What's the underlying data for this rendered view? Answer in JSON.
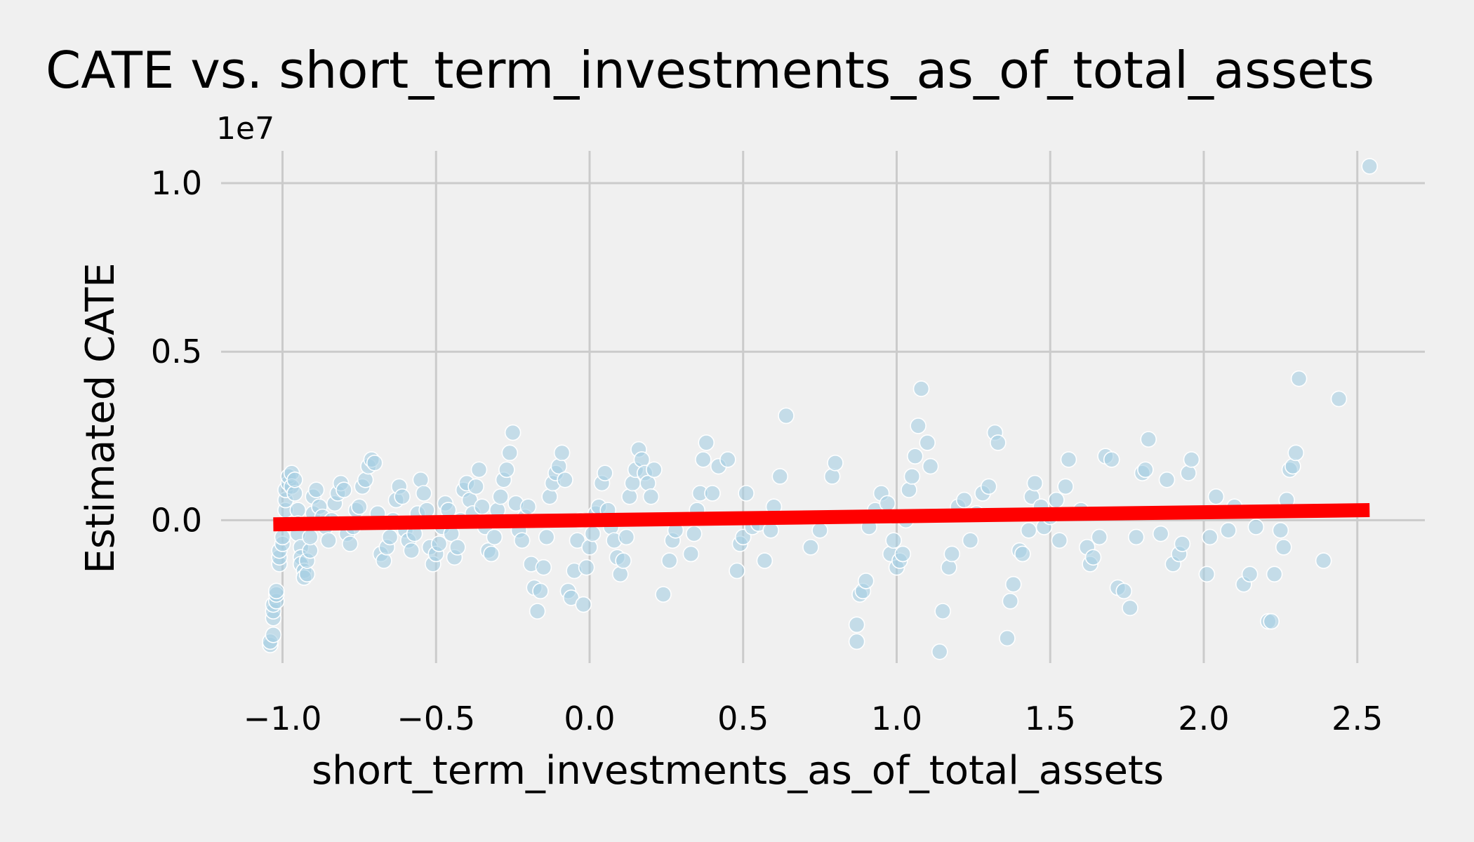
{
  "chart_data": {
    "type": "scatter",
    "title": "CATE vs. short_term_investments_as_of_total_assets",
    "xlabel": "short_term_investments_as_of_total_assets",
    "ylabel": "Estimated CATE",
    "y_offset_label": "1e7",
    "xlim": [
      -1.2,
      2.72
    ],
    "ylim": [
      -0.43,
      1.1
    ],
    "grid": true,
    "x_ticks": [
      -1.0,
      -0.5,
      0.0,
      0.5,
      1.0,
      1.5,
      2.0,
      2.5
    ],
    "x_tick_labels": [
      "−1.0",
      "−0.5",
      "0.0",
      "0.5",
      "1.0",
      "1.5",
      "2.0",
      "2.5"
    ],
    "y_ticks": [
      0.0,
      0.5,
      1.0
    ],
    "y_tick_labels": [
      "0.0",
      "0.5",
      "1.0"
    ],
    "colors": {
      "points": "#a6cee3",
      "trend": "#ff0000",
      "background": "#f0f0f0",
      "grid": "#cbcbcb"
    },
    "trend_line": {
      "x": [
        -1.03,
        2.54
      ],
      "y": [
        -0.012,
        0.03
      ]
    },
    "series": [
      {
        "points": [
          [
            -1.04,
            -0.37
          ],
          [
            -1.04,
            -0.36
          ],
          [
            -1.03,
            -0.34
          ],
          [
            -1.03,
            -0.29
          ],
          [
            -1.03,
            -0.27
          ],
          [
            -1.03,
            -0.25
          ],
          [
            -1.02,
            -0.24
          ],
          [
            -1.02,
            -0.22
          ],
          [
            -1.02,
            -0.21
          ],
          [
            -1.01,
            -0.13
          ],
          [
            -1.01,
            -0.11
          ],
          [
            -1.01,
            -0.09
          ],
          [
            -1.0,
            -0.07
          ],
          [
            -1.0,
            -0.05
          ],
          [
            -0.99,
            0.03
          ],
          [
            -0.99,
            0.06
          ],
          [
            -0.99,
            0.09
          ],
          [
            -0.98,
            0.11
          ],
          [
            -0.98,
            0.13
          ],
          [
            -0.97,
            0.14
          ],
          [
            -0.97,
            0.1
          ],
          [
            -0.96,
            0.08
          ],
          [
            -0.96,
            0.12
          ],
          [
            -0.95,
            0.03
          ],
          [
            -0.95,
            -0.01
          ],
          [
            -0.95,
            -0.04
          ],
          [
            -0.94,
            -0.08
          ],
          [
            -0.94,
            -0.11
          ],
          [
            -0.94,
            -0.13
          ],
          [
            -0.93,
            -0.15
          ],
          [
            -0.93,
            -0.17
          ],
          [
            -0.92,
            -0.16
          ],
          [
            -0.92,
            -0.12
          ],
          [
            -0.91,
            -0.09
          ],
          [
            -0.91,
            -0.05
          ],
          [
            -0.9,
            0.02
          ],
          [
            -0.9,
            0.07
          ],
          [
            -0.89,
            0.09
          ],
          [
            -0.88,
            0.04
          ],
          [
            -0.87,
            0.01
          ],
          [
            -0.86,
            -0.02
          ],
          [
            -0.85,
            -0.06
          ],
          [
            -0.84,
            0.0
          ],
          [
            -0.83,
            0.05
          ],
          [
            -0.82,
            0.08
          ],
          [
            -0.81,
            0.11
          ],
          [
            -0.8,
            0.09
          ],
          [
            -0.79,
            -0.04
          ],
          [
            -0.78,
            -0.07
          ],
          [
            -0.77,
            -0.02
          ],
          [
            -0.76,
            0.03
          ],
          [
            -0.75,
            0.04
          ],
          [
            -0.74,
            0.1
          ],
          [
            -0.73,
            0.12
          ],
          [
            -0.72,
            0.16
          ],
          [
            -0.71,
            0.18
          ],
          [
            -0.7,
            0.17
          ],
          [
            -0.69,
            0.02
          ],
          [
            -0.68,
            -0.1
          ],
          [
            -0.67,
            -0.12
          ],
          [
            -0.66,
            -0.08
          ],
          [
            -0.65,
            -0.05
          ],
          [
            -0.64,
            0.0
          ],
          [
            -0.63,
            0.06
          ],
          [
            -0.62,
            0.1
          ],
          [
            -0.61,
            0.07
          ],
          [
            -0.6,
            -0.03
          ],
          [
            -0.59,
            -0.06
          ],
          [
            -0.58,
            -0.09
          ],
          [
            -0.57,
            -0.04
          ],
          [
            -0.56,
            0.02
          ],
          [
            -0.55,
            0.12
          ],
          [
            -0.54,
            0.08
          ],
          [
            -0.53,
            0.03
          ],
          [
            -0.52,
            -0.08
          ],
          [
            -0.51,
            -0.13
          ],
          [
            -0.5,
            -0.1
          ],
          [
            -0.49,
            -0.07
          ],
          [
            -0.48,
            -0.02
          ],
          [
            -0.47,
            0.05
          ],
          [
            -0.46,
            0.03
          ],
          [
            -0.45,
            -0.04
          ],
          [
            -0.44,
            -0.11
          ],
          [
            -0.43,
            -0.08
          ],
          [
            -0.42,
            0.0
          ],
          [
            -0.41,
            0.09
          ],
          [
            -0.4,
            0.11
          ],
          [
            -0.39,
            0.06
          ],
          [
            -0.38,
            0.02
          ],
          [
            -0.37,
            0.1
          ],
          [
            -0.36,
            0.15
          ],
          [
            -0.35,
            0.04
          ],
          [
            -0.34,
            -0.02
          ],
          [
            -0.33,
            -0.09
          ],
          [
            -0.32,
            -0.1
          ],
          [
            -0.31,
            -0.05
          ],
          [
            -0.3,
            0.03
          ],
          [
            -0.29,
            0.07
          ],
          [
            -0.28,
            0.12
          ],
          [
            -0.27,
            0.15
          ],
          [
            -0.26,
            0.2
          ],
          [
            -0.25,
            0.26
          ],
          [
            -0.24,
            0.05
          ],
          [
            -0.23,
            -0.03
          ],
          [
            -0.22,
            -0.06
          ],
          [
            -0.21,
            0.01
          ],
          [
            -0.2,
            0.04
          ],
          [
            -0.19,
            -0.13
          ],
          [
            -0.18,
            -0.2
          ],
          [
            -0.17,
            -0.27
          ],
          [
            -0.16,
            -0.21
          ],
          [
            -0.15,
            -0.14
          ],
          [
            -0.14,
            -0.05
          ],
          [
            -0.13,
            0.07
          ],
          [
            -0.12,
            0.11
          ],
          [
            -0.11,
            0.14
          ],
          [
            -0.1,
            0.16
          ],
          [
            -0.09,
            0.2
          ],
          [
            -0.08,
            0.12
          ],
          [
            -0.07,
            -0.21
          ],
          [
            -0.06,
            -0.23
          ],
          [
            -0.05,
            -0.15
          ],
          [
            -0.04,
            -0.06
          ],
          [
            -0.03,
            0.0
          ],
          [
            -0.02,
            -0.25
          ],
          [
            -0.01,
            -0.14
          ],
          [
            0.0,
            -0.08
          ],
          [
            0.01,
            -0.04
          ],
          [
            0.02,
            0.02
          ],
          [
            0.03,
            0.04
          ],
          [
            0.04,
            0.11
          ],
          [
            0.05,
            0.14
          ],
          [
            0.06,
            0.03
          ],
          [
            0.07,
            -0.02
          ],
          [
            0.08,
            -0.06
          ],
          [
            0.09,
            -0.11
          ],
          [
            0.1,
            -0.16
          ],
          [
            0.11,
            -0.12
          ],
          [
            0.12,
            -0.05
          ],
          [
            0.13,
            0.07
          ],
          [
            0.14,
            0.11
          ],
          [
            0.15,
            0.15
          ],
          [
            0.16,
            0.21
          ],
          [
            0.17,
            0.18
          ],
          [
            0.18,
            0.14
          ],
          [
            0.19,
            0.11
          ],
          [
            0.2,
            0.07
          ],
          [
            0.21,
            0.15
          ],
          [
            0.24,
            -0.22
          ],
          [
            0.26,
            -0.12
          ],
          [
            0.27,
            -0.06
          ],
          [
            0.28,
            -0.03
          ],
          [
            0.33,
            -0.1
          ],
          [
            0.34,
            -0.04
          ],
          [
            0.35,
            0.03
          ],
          [
            0.36,
            0.08
          ],
          [
            0.37,
            0.18
          ],
          [
            0.38,
            0.23
          ],
          [
            0.4,
            0.08
          ],
          [
            0.42,
            0.16
          ],
          [
            0.45,
            0.18
          ],
          [
            0.48,
            -0.15
          ],
          [
            0.49,
            -0.07
          ],
          [
            0.5,
            -0.05
          ],
          [
            0.51,
            0.08
          ],
          [
            0.53,
            -0.02
          ],
          [
            0.55,
            -0.01
          ],
          [
            0.57,
            -0.12
          ],
          [
            0.59,
            -0.03
          ],
          [
            0.6,
            0.04
          ],
          [
            0.62,
            0.13
          ],
          [
            0.64,
            0.31
          ],
          [
            0.72,
            -0.08
          ],
          [
            0.75,
            -0.03
          ],
          [
            0.79,
            0.13
          ],
          [
            0.8,
            0.17
          ],
          [
            0.87,
            -0.36
          ],
          [
            0.87,
            -0.31
          ],
          [
            0.88,
            -0.22
          ],
          [
            0.89,
            -0.21
          ],
          [
            0.9,
            -0.18
          ],
          [
            0.91,
            -0.02
          ],
          [
            0.93,
            0.03
          ],
          [
            0.95,
            0.08
          ],
          [
            0.97,
            0.05
          ],
          [
            0.98,
            -0.1
          ],
          [
            0.99,
            -0.06
          ],
          [
            1.0,
            -0.14
          ],
          [
            1.01,
            -0.12
          ],
          [
            1.02,
            -0.1
          ],
          [
            1.03,
            0.0
          ],
          [
            1.04,
            0.09
          ],
          [
            1.05,
            0.13
          ],
          [
            1.06,
            0.19
          ],
          [
            1.07,
            0.28
          ],
          [
            1.08,
            0.39
          ],
          [
            1.1,
            0.23
          ],
          [
            1.11,
            0.16
          ],
          [
            1.14,
            -0.39
          ],
          [
            1.15,
            -0.27
          ],
          [
            1.17,
            -0.14
          ],
          [
            1.18,
            -0.1
          ],
          [
            1.2,
            0.04
          ],
          [
            1.22,
            0.06
          ],
          [
            1.24,
            -0.06
          ],
          [
            1.26,
            0.02
          ],
          [
            1.28,
            0.08
          ],
          [
            1.3,
            0.1
          ],
          [
            1.32,
            0.26
          ],
          [
            1.33,
            0.23
          ],
          [
            1.36,
            -0.35
          ],
          [
            1.37,
            -0.24
          ],
          [
            1.38,
            -0.19
          ],
          [
            1.4,
            -0.09
          ],
          [
            1.41,
            -0.1
          ],
          [
            1.43,
            -0.03
          ],
          [
            1.44,
            0.07
          ],
          [
            1.45,
            0.11
          ],
          [
            1.47,
            0.04
          ],
          [
            1.48,
            -0.02
          ],
          [
            1.5,
            0.01
          ],
          [
            1.52,
            0.06
          ],
          [
            1.53,
            -0.06
          ],
          [
            1.55,
            0.1
          ],
          [
            1.56,
            0.18
          ],
          [
            1.6,
            0.03
          ],
          [
            1.62,
            -0.08
          ],
          [
            1.63,
            -0.13
          ],
          [
            1.64,
            -0.11
          ],
          [
            1.66,
            -0.05
          ],
          [
            1.68,
            0.19
          ],
          [
            1.7,
            0.18
          ],
          [
            1.72,
            -0.2
          ],
          [
            1.74,
            -0.21
          ],
          [
            1.76,
            -0.26
          ],
          [
            1.78,
            -0.05
          ],
          [
            1.8,
            0.14
          ],
          [
            1.81,
            0.15
          ],
          [
            1.82,
            0.24
          ],
          [
            1.86,
            -0.04
          ],
          [
            1.88,
            0.12
          ],
          [
            1.9,
            -0.13
          ],
          [
            1.92,
            -0.1
          ],
          [
            1.93,
            -0.07
          ],
          [
            1.95,
            0.14
          ],
          [
            1.96,
            0.18
          ],
          [
            2.01,
            -0.16
          ],
          [
            2.02,
            -0.05
          ],
          [
            2.04,
            0.07
          ],
          [
            2.08,
            -0.03
          ],
          [
            2.1,
            0.04
          ],
          [
            2.13,
            -0.19
          ],
          [
            2.15,
            -0.16
          ],
          [
            2.17,
            -0.02
          ],
          [
            2.21,
            -0.3
          ],
          [
            2.22,
            -0.3
          ],
          [
            2.23,
            -0.16
          ],
          [
            2.25,
            -0.03
          ],
          [
            2.26,
            -0.08
          ],
          [
            2.27,
            0.06
          ],
          [
            2.28,
            0.15
          ],
          [
            2.29,
            0.16
          ],
          [
            2.3,
            0.2
          ],
          [
            2.31,
            0.42
          ],
          [
            2.39,
            -0.12
          ],
          [
            2.44,
            0.36
          ],
          [
            2.54,
            1.05
          ]
        ]
      }
    ]
  }
}
